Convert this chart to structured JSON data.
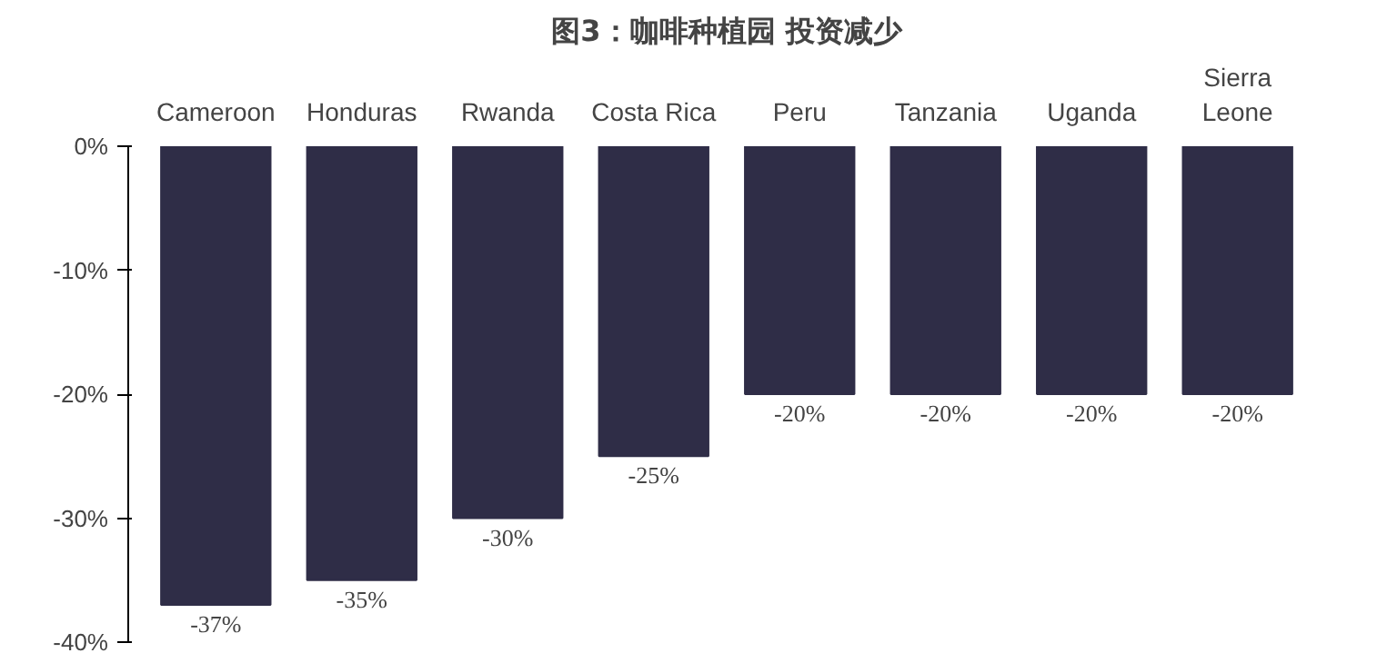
{
  "chart_data": {
    "type": "bar",
    "title": "图3：咖啡种植园 投资减少",
    "categories": [
      "Cameroon",
      "Honduras",
      "Rwanda",
      "Costa Rica",
      "Peru",
      "Tanzania",
      "Uganda",
      "Sierra Leone"
    ],
    "values": [
      -37,
      -35,
      -30,
      -25,
      -20,
      -20,
      -20,
      -20
    ],
    "value_labels": [
      "-37%",
      "-35%",
      "-30%",
      "-25%",
      "-20%",
      "-20%",
      "-20%",
      "-20%"
    ],
    "color": "#2f2d47",
    "ylim": [
      -40,
      0
    ],
    "yticks": [
      {
        "value": 0,
        "label": "0%"
      },
      {
        "value": -10,
        "label": "-10%"
      },
      {
        "value": -20,
        "label": "-20%"
      },
      {
        "value": -30,
        "label": "-30%"
      },
      {
        "value": -40,
        "label": "-40%"
      }
    ],
    "grid": false
  }
}
